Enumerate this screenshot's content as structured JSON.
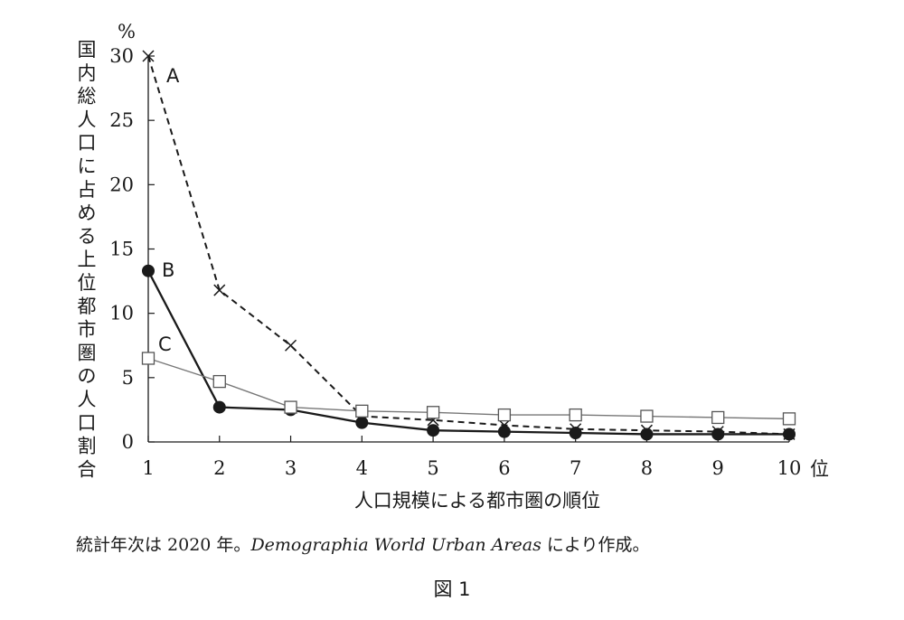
{
  "chart_data": {
    "type": "line",
    "xlabel": "人口規模による都市圏の順位",
    "xunit": "位",
    "ylabel": "国内総人口に占める上位都市圏の人口割合",
    "yunit": "%",
    "x": [
      1,
      2,
      3,
      4,
      5,
      6,
      7,
      8,
      9,
      10
    ],
    "xticks": [
      "1",
      "2",
      "3",
      "4",
      "5",
      "6",
      "7",
      "8",
      "9",
      "10"
    ],
    "yticks": [
      "0",
      "5",
      "10",
      "15",
      "20",
      "25",
      "30"
    ],
    "ylim": [
      0,
      30
    ],
    "xlim": [
      1,
      10
    ],
    "grid": false,
    "series": [
      {
        "name": "A",
        "marker": "cross",
        "line": "dashed",
        "color": "#1a1a1a",
        "values": [
          30.0,
          11.8,
          7.5,
          2.0,
          1.7,
          1.3,
          1.0,
          0.9,
          0.8,
          0.6
        ]
      },
      {
        "name": "B",
        "marker": "filled-circle",
        "line": "solid",
        "color": "#1a1a1a",
        "values": [
          13.3,
          2.7,
          2.5,
          1.5,
          0.9,
          0.8,
          0.7,
          0.6,
          0.6,
          0.6
        ]
      },
      {
        "name": "C",
        "marker": "open-square",
        "line": "solid-thin",
        "color": "#777777",
        "values": [
          6.5,
          4.7,
          2.7,
          2.4,
          2.3,
          2.1,
          2.1,
          2.0,
          1.9,
          1.8
        ]
      }
    ]
  },
  "source_note": {
    "prefix": "統計年次は 2020 年。",
    "title": "Demographia World Urban Areas",
    "suffix": " により作成。"
  },
  "figure_caption": "図 1"
}
